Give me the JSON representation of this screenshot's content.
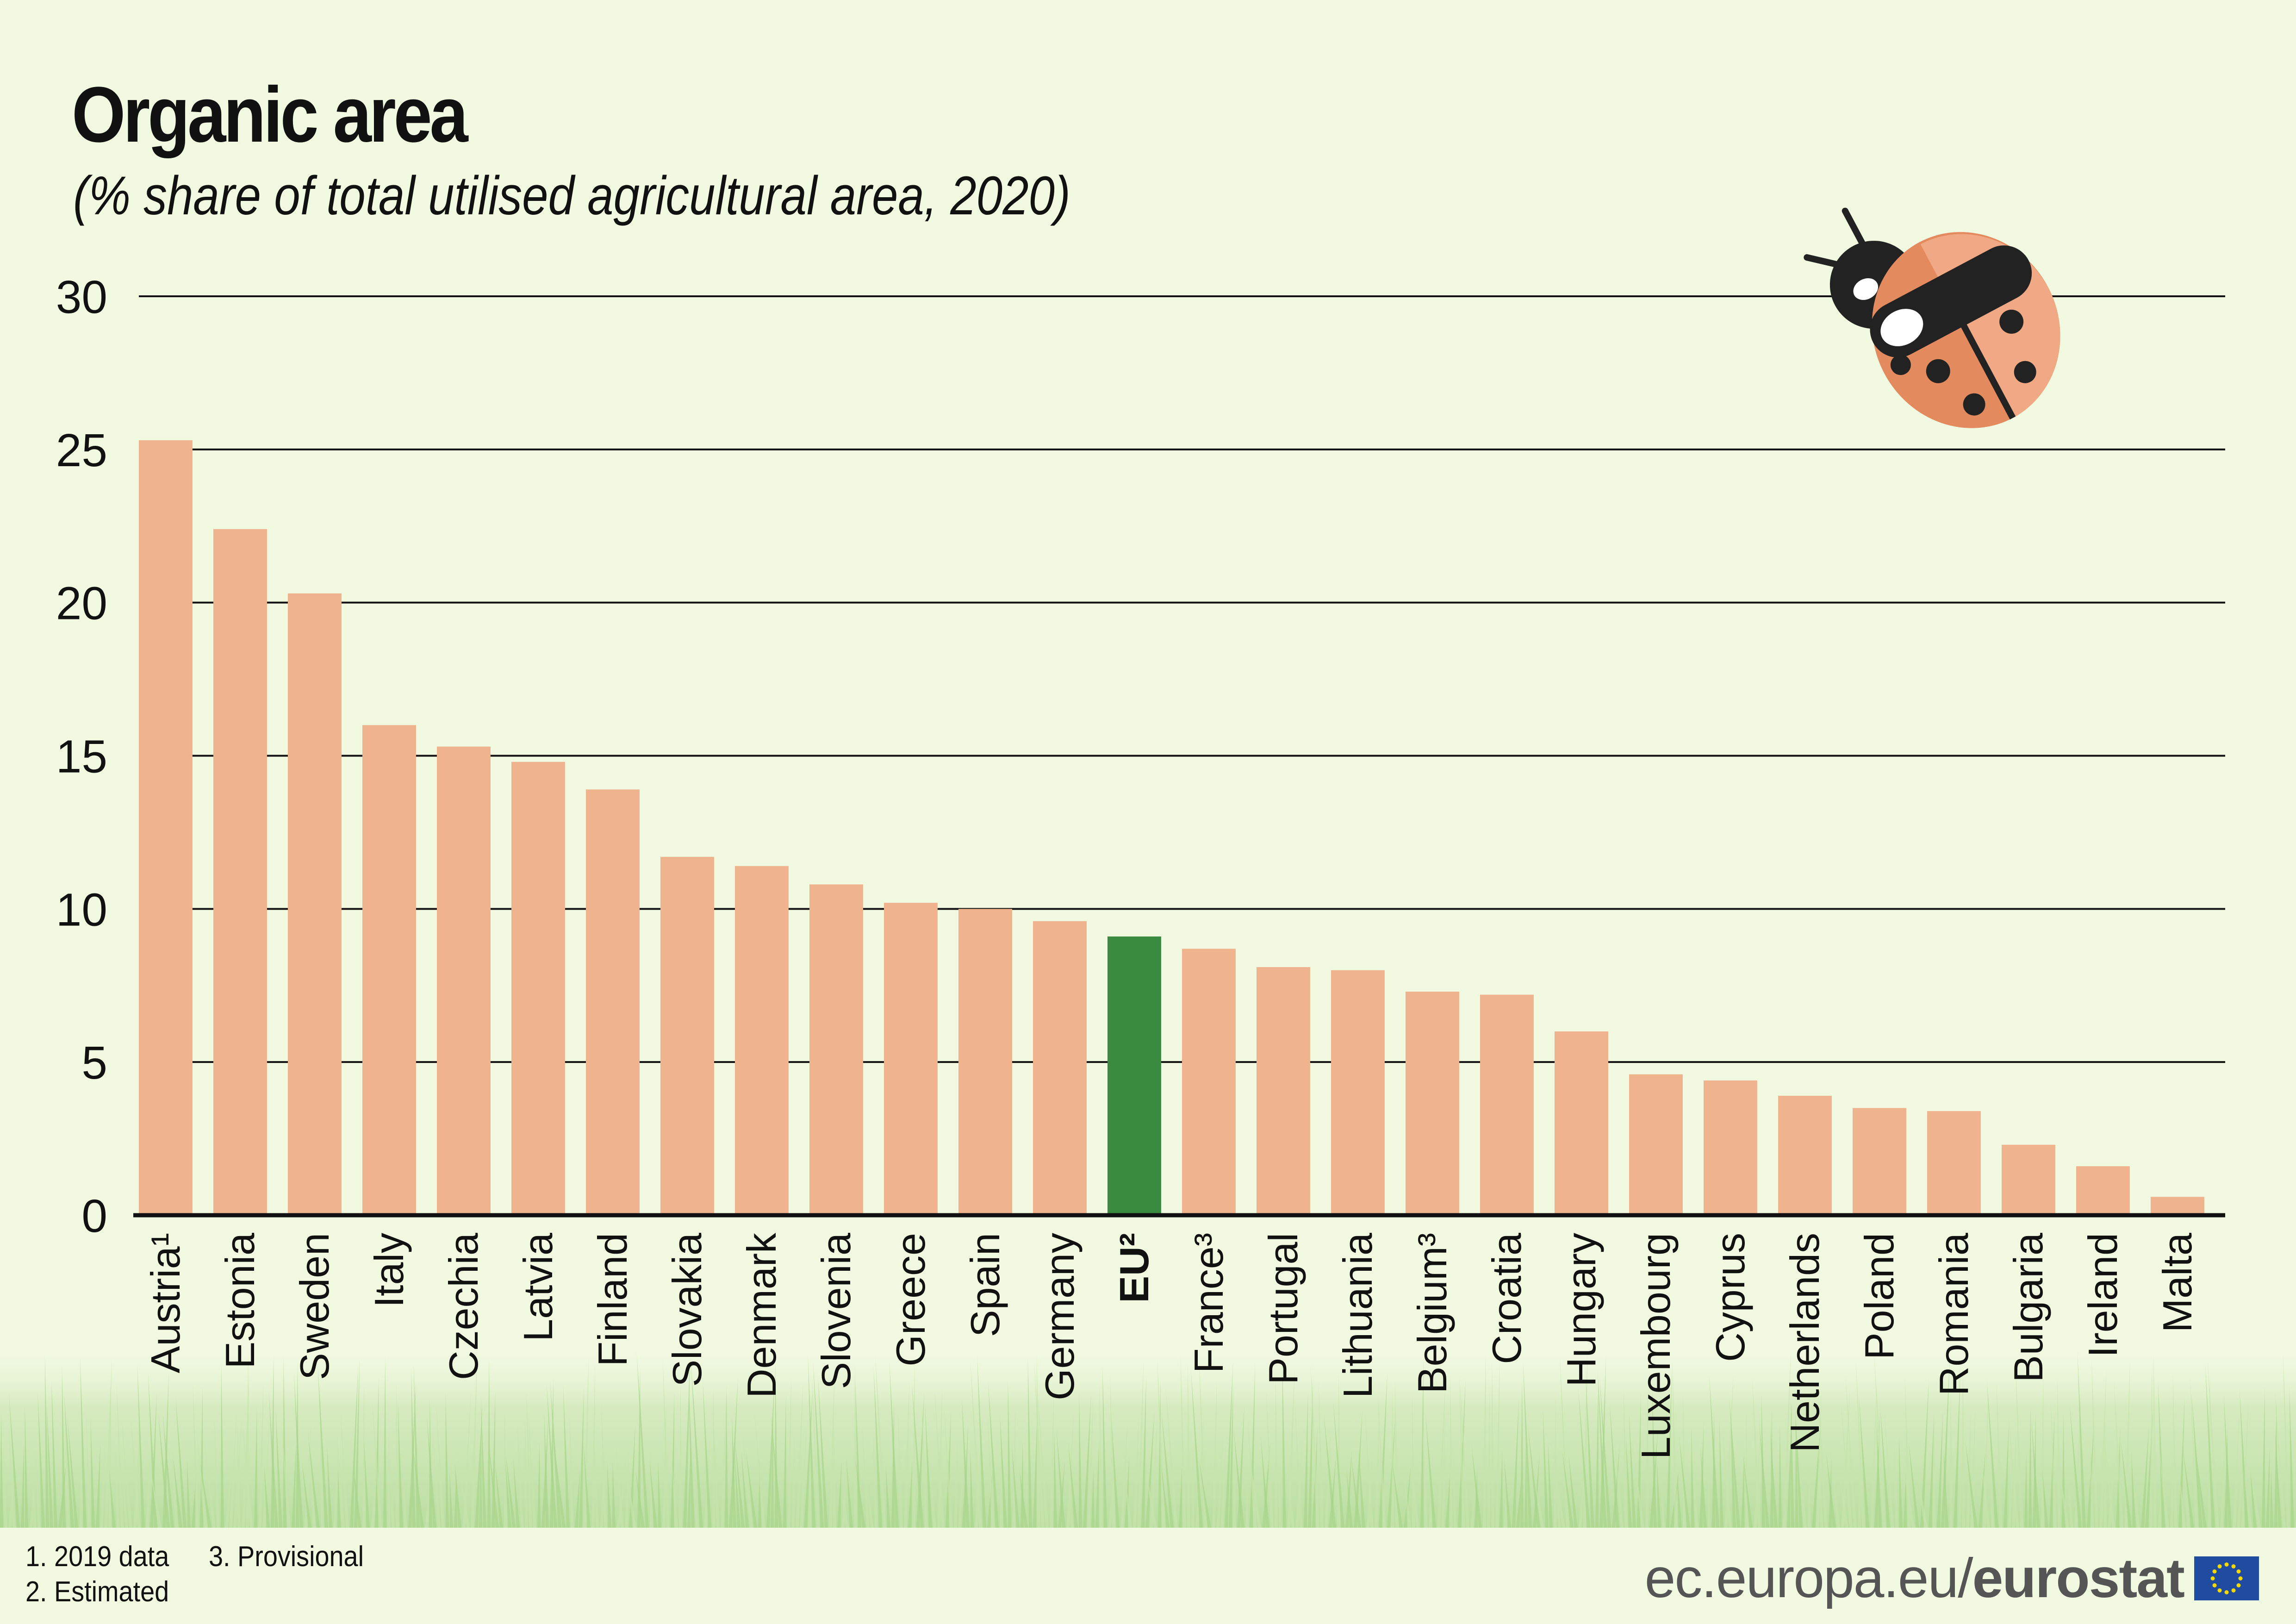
{
  "header": {
    "title": "Organic area",
    "subtitle": "(% share of total utilised agricultural area, 2020)"
  },
  "chart_data": {
    "type": "bar",
    "title": "Organic area",
    "subtitle": "(% share of total utilised agricultural area, 2020)",
    "xlabel": "",
    "ylabel": "",
    "ylim": [
      0,
      30
    ],
    "yticks": [
      "0",
      "5",
      "10",
      "15",
      "20",
      "25",
      "30"
    ],
    "grid": true,
    "legend": "none",
    "categories": [
      "Austria¹",
      "Estonia",
      "Sweden",
      "Italy",
      "Czechia",
      "Latvia",
      "Finland",
      "Slovakia",
      "Denmark",
      "Slovenia",
      "Greece",
      "Spain",
      "Germany",
      "EU²",
      "France³",
      "Portugal",
      "Lithuania",
      "Belgium³",
      "Croatia",
      "Hungary",
      "Luxembourg",
      "Cyprus",
      "Netherlands",
      "Poland",
      "Romania",
      "Bulgaria",
      "Ireland",
      "Malta"
    ],
    "values": [
      25.3,
      22.4,
      20.3,
      16.0,
      15.3,
      14.8,
      13.9,
      11.7,
      11.4,
      10.8,
      10.2,
      10.0,
      9.6,
      9.1,
      8.7,
      8.1,
      8.0,
      7.3,
      7.2,
      6.0,
      4.6,
      4.4,
      3.9,
      3.5,
      3.4,
      2.3,
      1.6,
      0.6
    ],
    "highlight_category": "EU²",
    "colors": {
      "bar": "#efb48e",
      "highlight": "#3a8a40",
      "grid": "#111111",
      "background": "#f1f9e1"
    }
  },
  "footnotes": [
    "1. 2019 data",
    "3. Provisional",
    "2. Estimated"
  ],
  "brand": {
    "site": "ec.europa.eu/",
    "name": "eurostat"
  },
  "icons": [
    "ladybug-icon",
    "grass-decoration",
    "eu-flag-icon"
  ]
}
